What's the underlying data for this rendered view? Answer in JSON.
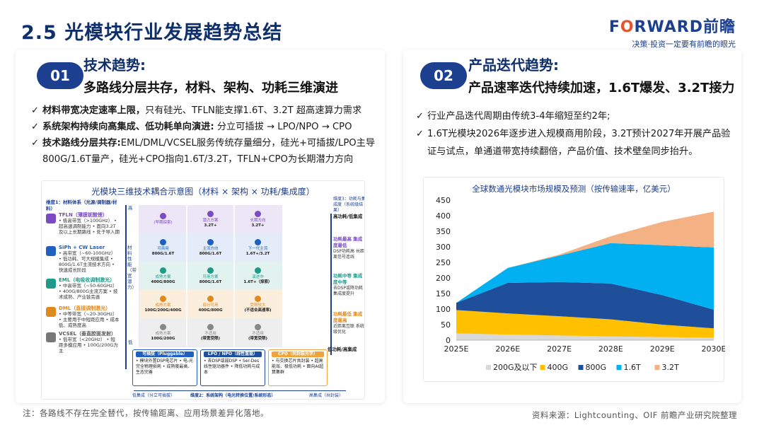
{
  "header": {
    "title": "2.5 光模块行业发展趋势总结",
    "brand_logo_left": "F",
    "brand_logo_o": "O",
    "brand_logo_right": "RWARD前瞻",
    "brand_tagline": "决策·投资一定要有前瞻的眼光"
  },
  "left": {
    "badge": "01",
    "heading": "技术趋势:",
    "subheading": "多路线分层共存，材料、架构、功耗三维演进",
    "bullets": [
      {
        "check": "✓",
        "bold": "材料带宽决定速率上限，",
        "text": "只有硅光、TFLN能支撑1.6T、3.2T 超高速算力需求"
      },
      {
        "check": "✓",
        "bold": "系统架构持续向高集成、低功耗单向演进:",
        "text": " 分立可插拔 → LPO/NPO → CPO"
      },
      {
        "check": "✓",
        "bold": "技术路线分层共存:",
        "text": "EML/DML/VCSEL服务传统存量细分，硅光+可插拔/LPO主导800G/1.6T量产，硅光+CPO指向1.6T/3.2T，TFLN+CPO为长期潜力方向"
      }
    ],
    "figure": {
      "title": "光模块三维技术耦合示意图（材料 × 架构 × 功耗/集成度）",
      "dim_material": "维度1：材料体系（光源/调制器/材料）",
      "materials": [
        {
          "name": "TFLN（薄膜铌酸锂）",
          "desc": "• 极高带宽（>100GHz） • 超高速调制能力 • 面向3.2T及以上长期路线 • 处于导入期",
          "color": "#7b4bc4"
        },
        {
          "name": "SiPh + CW Laser",
          "desc": "• 高带宽（~60-100GHz） • 低功耗、可大规模集成 • 800G/1.6T主流技术方向 • 快速成长阶段",
          "color": "#1f5fbf"
        },
        {
          "name": "EML（电吸收调制激光）",
          "desc": "• 中高带宽（~50-60GHz） • 400G/800G主流方案 • 技术成熟、产业链完善",
          "color": "#1d9a8a"
        },
        {
          "name": "DML（直接调制激光）",
          "desc": "• 中等带宽（~20-30GHz） • 主要用于中短距应用 • 成本低、成熟度高",
          "color": "#e08a1e"
        },
        {
          "name": "VCSEL（垂直腔面发射）",
          "desc": "• 低带宽（<20GHz） • 短距多模应用 • 100G/200G为主",
          "color": "#777777"
        }
      ],
      "axis_label_v": "材料性能（带宽潜力）",
      "axis_high": "高",
      "axis_low": "低",
      "dim_power": "维度3：功耗与集成度（系统级结果）",
      "power_levels": [
        {
          "title": "高功耗/低集成",
          "desc": ""
        },
        {
          "title": "功耗最高 集成度最低",
          "desc": "DSP功耗高 长距离信号连线"
        },
        {
          "title": "功耗中等 集成度中等",
          "desc": "去DSP或降功耗 集成度提升"
        },
        {
          "title": "功耗最低 集成度最高",
          "desc": "近距离互联 系统级优化"
        },
        {
          "title": "低功耗/高集成",
          "desc": ""
        }
      ],
      "cube_rows": [
        [
          {
            "t": "(早期探索)",
            "s": ""
          },
          {
            "t": "潜力方案",
            "s": "3.2T+"
          },
          {
            "t": "长期方向",
            "s": "3.2T+"
          }
        ],
        [
          {
            "t": "可商用",
            "s": "800G/1.6T"
          },
          {
            "t": "主流方向",
            "s": "800G/1.6T"
          },
          {
            "t": "下一代主流",
            "s": "1.6T+/3.2T"
          }
        ],
        [
          {
            "t": "成熟方案",
            "s": "400G/800G"
          },
          {
            "t": "可用方案",
            "s": "800G/1.6T"
          },
          {
            "t": "演进中",
            "s": "1.6T+（探索）"
          }
        ],
        [
          {
            "t": "成熟方案",
            "s": "100G/200G/400G"
          },
          {
            "t": "部分可用",
            "s": "400G/800G"
          },
          {
            "t": "受限较大",
            "s": "(不适合高速率)"
          }
        ],
        [
          {
            "t": "成熟方案",
            "s": "100G/200G"
          },
          {
            "t": "不适用",
            "s": "(带宽受限)"
          },
          {
            "t": "不适用",
            "s": "(带宽受限)"
          }
        ]
      ],
      "arch": [
        {
          "name": "可插拔（Pluggable）",
          "desc": "• 模块外置DSP电芯片 • 电-光完全物理损耗 • 成熟度最高、生态完善",
          "color": "#1f5fbf"
        },
        {
          "name": "LPO / NPO（线性直驱）",
          "desc": "• 去DSP或弱DSP • Ser-Des线性驱动器件 • 降低功耗与成本",
          "color": "#1d4f9f"
        },
        {
          "name": "CPO（共封装光学）",
          "desc": "• 与交换芯片共封装 • 超高能效、极低功耗 • 面向AI超算集群",
          "color": "#f0a33b"
        }
      ],
      "dim_arch": "维度2：系统架构（电光转换位置/系统形态）",
      "arch_low": "低集成（分立可插拔）",
      "arch_high": "高集成（共封装）",
      "axis_right": "低功耗/高集成"
    }
  },
  "right": {
    "badge": "02",
    "heading": "产品迭代趋势:",
    "subheading": "产品速率迭代持续加速，1.6T爆发、3.2T接力",
    "bullets": [
      {
        "check": "✓",
        "bold": "",
        "text": "行业产品迭代周期由传统3-4年缩短至约2年;"
      },
      {
        "check": "✓",
        "bold": "",
        "text": "1.6T光模块2026年逐步进入规模商用阶段，3.2T预计2027年开展产品验证与试点，单通道带宽持续翻倍，产品价值、技术壁垒同步抬升。"
      }
    ]
  },
  "chart_data": {
    "type": "area",
    "title": "全球数通光模块市场规模及预测（按传输速率，亿美元）",
    "x": [
      "2025E",
      "2026E",
      "2027E",
      "2028E",
      "2029E",
      "2030E"
    ],
    "ylim": [
      0,
      450
    ],
    "yticks": [
      0,
      50,
      100,
      150,
      200,
      250,
      300,
      350,
      400,
      450
    ],
    "legend_position": "bottom",
    "stacked": true,
    "series": [
      {
        "name": "200G及以下",
        "color": "#d9d9d9",
        "values": [
          22,
          18,
          15,
          12,
          10,
          8
        ]
      },
      {
        "name": "400G",
        "color": "#ffc000",
        "values": [
          75,
          68,
          62,
          55,
          40,
          30
        ]
      },
      {
        "name": "800G",
        "color": "#1f4e9b",
        "values": [
          23,
          98,
          110,
          115,
          95,
          60
        ]
      },
      {
        "name": "1.6T",
        "color": "#00b0f0",
        "values": [
          0,
          48,
          85,
          130,
          160,
          200
        ]
      },
      {
        "name": "3.2T",
        "color": "#f4b183",
        "values": [
          0,
          0,
          3,
          22,
          75,
          115
        ]
      }
    ]
  },
  "footer": {
    "note": "注：各路线不存在完全替代，按传输距离、应用场景差异化落地。",
    "source": "资料来源：Lightcounting、OIF 前瞻产业研究院整理"
  }
}
